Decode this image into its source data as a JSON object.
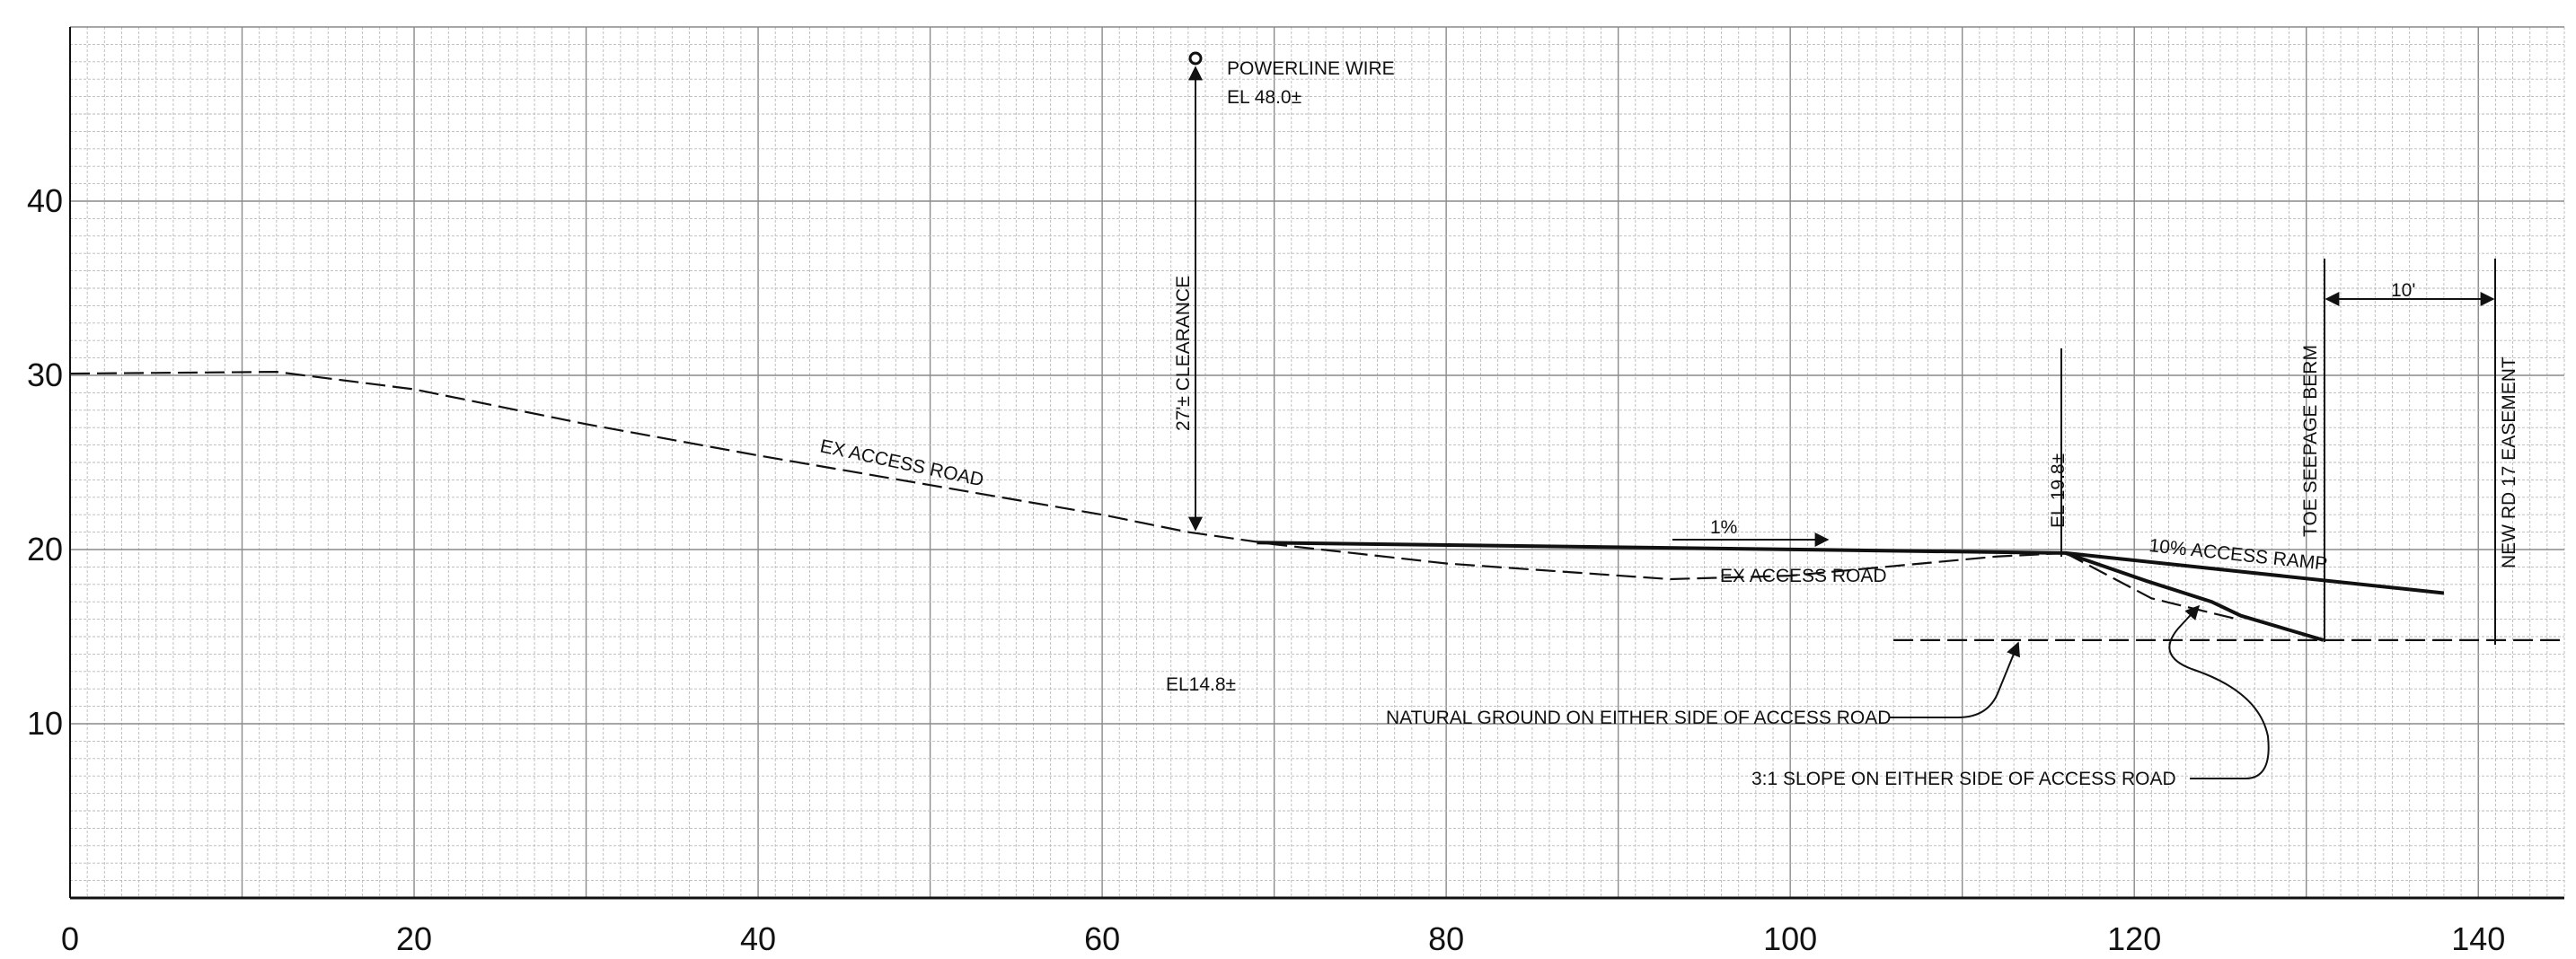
{
  "chart_data": {
    "type": "line",
    "title": "",
    "xlabel": "",
    "ylabel": "",
    "xlim": [
      0,
      145
    ],
    "ylim": [
      0,
      50
    ],
    "x_ticks": [
      "0",
      "20",
      "40",
      "60",
      "80",
      "100",
      "120",
      "140"
    ],
    "y_ticks": [
      "10",
      "20",
      "30",
      "40"
    ],
    "grid": true,
    "series": [
      {
        "style": "dashed",
        "points": [
          [
            0,
            30.1
          ],
          [
            12,
            30.2
          ],
          [
            20,
            29.2
          ],
          [
            30,
            27.2
          ],
          [
            40,
            25.4
          ],
          [
            50,
            23.7
          ],
          [
            60,
            22.0
          ],
          [
            65,
            21.0
          ],
          [
            70,
            20.3
          ],
          [
            80,
            19.2
          ],
          [
            93,
            18.3
          ],
          [
            100,
            18.5
          ],
          [
            112,
            19.6
          ],
          [
            116,
            19.8
          ]
        ]
      },
      {
        "style": "solid",
        "points": [
          [
            69,
            20.4
          ],
          [
            116,
            19.8
          ],
          [
            138,
            17.5
          ]
        ]
      },
      {
        "style": "solid",
        "points": [
          [
            116,
            19.8
          ],
          [
            120.7,
            18.2
          ],
          [
            124.5,
            17.0
          ],
          [
            126.2,
            16.2
          ],
          [
            131,
            14.8
          ]
        ]
      },
      {
        "style": "dashed",
        "points": [
          [
            116,
            19.8
          ],
          [
            121,
            17.2
          ],
          [
            126,
            16.0
          ]
        ]
      },
      {
        "style": "dashed",
        "points": [
          [
            106,
            14.8
          ],
          [
            145,
            14.8
          ]
        ]
      }
    ],
    "annotations": [
      "POWERLINE WIRE",
      "EL 48.0±",
      "27'± CLEARANCE",
      "EX ACCESS ROAD",
      "1%",
      "EX ACCESS ROAD",
      "EL 19.8±",
      "10% ACCESS RAMP",
      "TOE SEEPAGE BERM",
      "NEW RD 17 EASEMENT",
      "10'",
      "EL14.8±",
      "NATURAL GROUND ON EITHER SIDE OF ACCESS ROAD",
      "3:1 SLOPE ON EITHER SIDE OF ACCESS ROAD"
    ]
  }
}
